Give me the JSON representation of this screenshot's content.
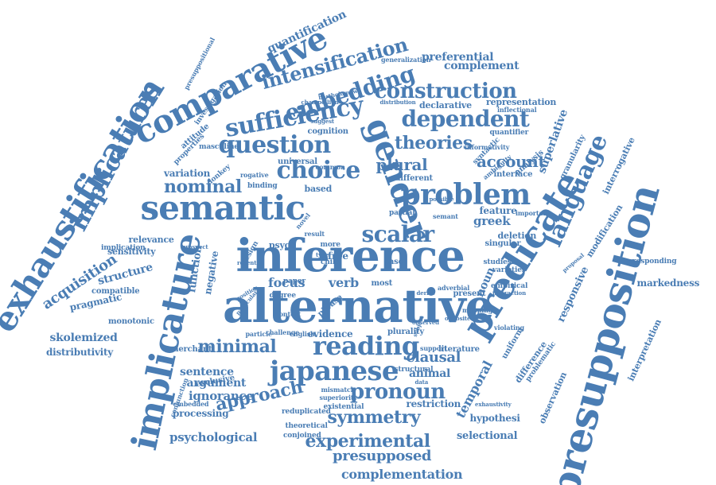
{
  "colors": {
    "word": "#4a7db4",
    "background": "#ffffff"
  },
  "words": [
    "alternative",
    "inference",
    "presupposition",
    "predicate",
    "implicature",
    "exhaustification",
    "semantic",
    "problem",
    "gender",
    "language",
    "comparative",
    "japanese",
    "reading",
    "scalar",
    "question",
    "choice",
    "sufficiency",
    "embedding",
    "construction",
    "dependent",
    "intensification",
    "theories",
    "implicatures",
    "pronoun",
    "experimental",
    "approach",
    "minimal",
    "nominal",
    "plural",
    "account",
    "symmetry",
    "presupposed",
    "complementation",
    "temporal",
    "clausal",
    "psychological",
    "ignorance",
    "acquisition",
    "skolemized",
    "sentence",
    "argument",
    "greek",
    "focus",
    "verb",
    "quantification",
    "preferential",
    "complement",
    "responsive",
    "superlative",
    "noun",
    "animal",
    "markedness",
    "structure",
    "pragmatic",
    "distributivity",
    "selectional",
    "hypothesi",
    "restriction",
    "processing",
    "evidence",
    "interpretation",
    "modification",
    "interrogative",
    "function",
    "negative",
    "feature",
    "variation",
    "universal",
    "cognition",
    "declarative",
    "representation",
    "granularity",
    "difference",
    "observation",
    "relevance",
    "sensitivity",
    "compatible",
    "monotonic",
    "merchant",
    "exclusive",
    "theoretical",
    "reduplicated",
    "conjoined",
    "embedded",
    "existential",
    "superiority",
    "mismatch",
    "structural",
    "present",
    "literature",
    "plurality",
    "particle",
    "english",
    "context",
    "phrase",
    "degree",
    "paper",
    "most",
    "case",
    "child",
    "deletion",
    "singular",
    "partial",
    "semant",
    "varieties",
    "empirical",
    "interface",
    "analysis",
    "quantifier",
    "different",
    "based",
    "binding",
    "donkey",
    "design",
    "psych",
    "free",
    "more",
    "result",
    "novel",
    "masculine",
    "properties",
    "attitude",
    "investigation",
    "presuppositional",
    "corresponding",
    "important",
    "uniform",
    "studies",
    "problematic",
    "implication",
    "challenge",
    "conjunction",
    "syntactic",
    "informativity",
    "ambiguity",
    "generalization",
    "inflectional",
    "distribution",
    "observed",
    "mapping",
    "violating",
    "support",
    "adverbial",
    "subject",
    "derive",
    "opposite",
    "recent",
    "data",
    "rogative",
    "common",
    "possible",
    "type",
    "position",
    "particular",
    "prospect",
    "exhaustivity",
    "proposal",
    "interaction",
    "suggest",
    "bartholomew",
    "champollion"
  ]
}
